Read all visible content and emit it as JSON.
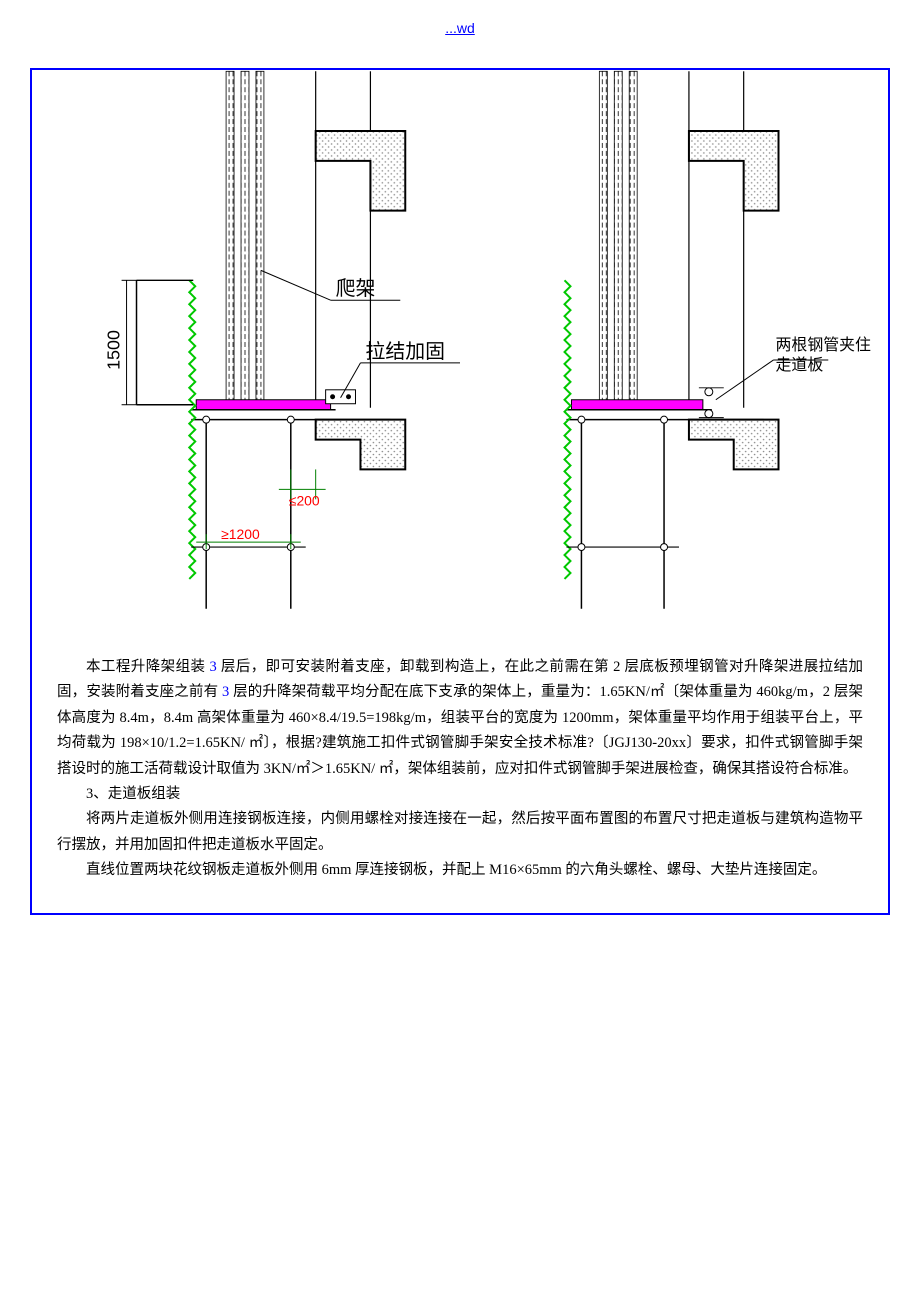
{
  "header": {
    "link_text": "...wd"
  },
  "diagram": {
    "labels": {
      "paj": "爬架",
      "ljjg": "拉结加固",
      "dim1500": "1500",
      "dim200": "≤200",
      "dim1200": "≥1200",
      "pipe_note_1": "两根钢管夹住",
      "pipe_note_2": "走道板"
    },
    "colors": {
      "black": "#000000",
      "green": "#00c800",
      "magenta": "#ff00ff",
      "red": "#ff0000",
      "grey_hatch": "#b0b0b0",
      "dim_green": "#008000"
    }
  },
  "body": {
    "p1": "本工程升降架组装 3 层后，即可安装附着支座，卸载到构造上，在此之前需在第 2 层底板预埋钢管对升降架进展拉结加固，安装附着支座之前有 3 层的升降架荷载平均分配在底下支承的架体上，重量为：1.65KN/㎡〔架体重量为 460kg/m，2 层架体高度为 8.4m，8.4m 高架体重量为 460×8.4/19.5=198kg/m，组装平台的宽度为 1200mm，架体重量平均作用于组装平台上，平均荷载为 198×10/1.2=1.65KN/ ㎡〕，根据?建筑施工扣件式钢管脚手架安全技术标准?〔JGJ130-20xx〕要求，扣件式钢管脚手架搭设时的施工活荷载设计取值为 3KN/㎡＞1.65KN/ ㎡，架体组装前，应对扣件式钢管脚手架进展检查，确保其搭设符合标准。",
    "p2_title": "3、走道板组装",
    "p3": "将两片走道板外侧用连接钢板连接，内侧用螺栓对接连接在一起，然后按平面布置图的布置尺寸把走道板与建筑构造物平行摆放，并用加固扣件把走道板水平固定。",
    "p4": "直线位置两块花纹钢板走道板外侧用 6mm 厚连接钢板，并配上 M16×65mm 的六角头螺栓、螺母、大垫片连接固定。"
  }
}
